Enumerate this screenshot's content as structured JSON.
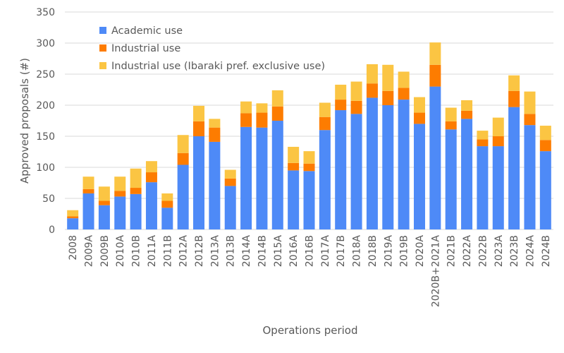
{
  "chart_data": {
    "type": "bar",
    "stacked": true,
    "xlabel": "Operations period",
    "ylabel": "Approved proposals (#)",
    "ylim": [
      0,
      350
    ],
    "yticks": [
      0,
      50,
      100,
      150,
      200,
      250,
      300,
      350
    ],
    "grid": true,
    "legend": "top-left",
    "categories": [
      "2008",
      "2009A",
      "2009B",
      "2010A",
      "2010B",
      "2011A",
      "2011B",
      "2012A",
      "2012B",
      "2013A",
      "2013B",
      "2014A",
      "2014B",
      "2015A",
      "2016A",
      "2016B",
      "2017A",
      "2017B",
      "2018A",
      "2018B",
      "2019A",
      "2019B",
      "2020A",
      "2020B+2021A",
      "2021B",
      "2022A",
      "2022B",
      "2023A",
      "2023B",
      "2024A",
      "2024B"
    ],
    "series": [
      {
        "name": "Academic use",
        "color": "#4e8af7",
        "values": [
          18,
          58,
          39,
          53,
          57,
          76,
          35,
          104,
          150,
          141,
          70,
          165,
          164,
          175,
          95,
          94,
          160,
          192,
          186,
          212,
          200,
          209,
          170,
          230,
          161,
          178,
          134,
          134,
          197,
          168,
          126
        ]
      },
      {
        "name": "Industrial use",
        "color": "#fd7c00",
        "values": [
          3,
          7,
          7,
          9,
          10,
          16,
          11,
          19,
          24,
          23,
          12,
          22,
          24,
          23,
          12,
          12,
          21,
          17,
          21,
          23,
          23,
          19,
          18,
          35,
          13,
          13,
          11,
          16,
          26,
          18,
          18
        ]
      },
      {
        "name": "Industrial use (Ibaraki pref. exclusive use)",
        "color": "#fbc543",
        "values": [
          10,
          20,
          23,
          23,
          31,
          18,
          12,
          29,
          25,
          14,
          14,
          19,
          15,
          26,
          26,
          20,
          23,
          24,
          31,
          31,
          42,
          26,
          25,
          36,
          22,
          17,
          14,
          30,
          25,
          36,
          23
        ]
      }
    ]
  }
}
